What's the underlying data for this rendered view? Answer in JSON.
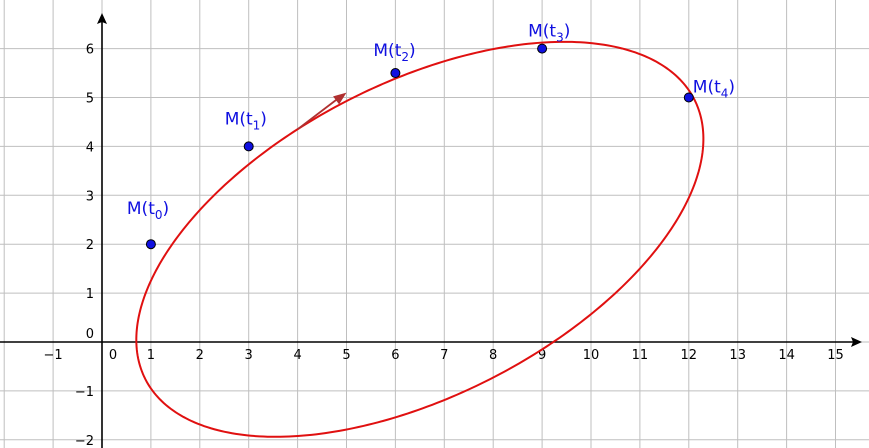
{
  "axes": {
    "x_ticks": [
      "−1",
      "0",
      "1",
      "2",
      "3",
      "4",
      "5",
      "6",
      "7",
      "8",
      "9",
      "10",
      "11",
      "12",
      "13",
      "14",
      "15"
    ],
    "y_ticks": [
      "−2",
      "−1",
      "1",
      "2",
      "3",
      "4",
      "5",
      "6"
    ],
    "grid": true
  },
  "curve": {
    "type": "ellipse",
    "color": "#e01010",
    "center": [
      6.5,
      2.1
    ],
    "semi_axes": [
      6.3,
      3.2
    ],
    "rotation_deg": 27
  },
  "direction_arrow": {
    "from": [
      4.0,
      4.35
    ],
    "to": [
      5.0,
      5.1
    ],
    "color": "#b03030"
  },
  "points": [
    {
      "name": "M(t",
      "sub": "0",
      "close": ")",
      "x": 1,
      "y": 2
    },
    {
      "name": "M(t",
      "sub": "1",
      "close": ")",
      "x": 3,
      "y": 4
    },
    {
      "name": "M(t",
      "sub": "2",
      "close": ")",
      "x": 6,
      "y": 5.5
    },
    {
      "name": "M(t",
      "sub": "3",
      "close": ")",
      "x": 9,
      "y": 6
    },
    {
      "name": "M(t",
      "sub": "4",
      "close": ")",
      "x": 12,
      "y": 5
    }
  ],
  "colors": {
    "point_fill": "#1010e0",
    "label": "#1010e0",
    "grid": "#bfbfbf",
    "axis": "#000000"
  }
}
